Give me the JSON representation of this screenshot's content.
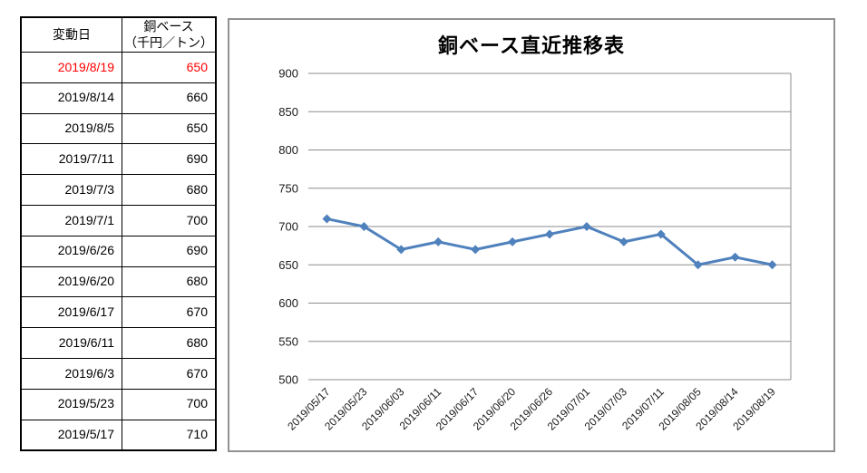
{
  "table": {
    "header_date": "変動日",
    "header_price_line1": "銅ベース",
    "header_price_line2": "（千円／トン）",
    "highlight_color": "#FF0000",
    "rows": [
      {
        "date": "2019/8/19",
        "value": "650",
        "highlight": true
      },
      {
        "date": "2019/8/14",
        "value": "660",
        "highlight": false
      },
      {
        "date": "2019/8/5",
        "value": "650",
        "highlight": false
      },
      {
        "date": "2019/7/11",
        "value": "690",
        "highlight": false
      },
      {
        "date": "2019/7/3",
        "value": "680",
        "highlight": false
      },
      {
        "date": "2019/7/1",
        "value": "700",
        "highlight": false
      },
      {
        "date": "2019/6/26",
        "value": "690",
        "highlight": false
      },
      {
        "date": "2019/6/20",
        "value": "680",
        "highlight": false
      },
      {
        "date": "2019/6/17",
        "value": "670",
        "highlight": false
      },
      {
        "date": "2019/6/11",
        "value": "680",
        "highlight": false
      },
      {
        "date": "2019/6/3",
        "value": "670",
        "highlight": false
      },
      {
        "date": "2019/5/23",
        "value": "700",
        "highlight": false
      },
      {
        "date": "2019/5/17",
        "value": "710",
        "highlight": false
      }
    ]
  },
  "chart_data": {
    "type": "line",
    "title": "銅ベース直近推移表",
    "categories": [
      "2019/05/17",
      "2019/05/23",
      "2019/06/03",
      "2019/06/11",
      "2019/06/17",
      "2019/06/20",
      "2019/06/26",
      "2019/07/01",
      "2019/07/03",
      "2019/07/11",
      "2019/08/05",
      "2019/08/14",
      "2019/08/19"
    ],
    "values": [
      710,
      700,
      670,
      680,
      670,
      680,
      690,
      700,
      680,
      690,
      650,
      660,
      650
    ],
    "xlabel": "",
    "ylabel": "",
    "ylim": [
      500,
      900
    ],
    "ytick_step": 50,
    "grid": true,
    "legend_position": "none",
    "line_color": "#4F81BD",
    "marker": "diamond",
    "grid_color": "#8C8C8C",
    "tick_label_color": "#1a1a1a"
  }
}
